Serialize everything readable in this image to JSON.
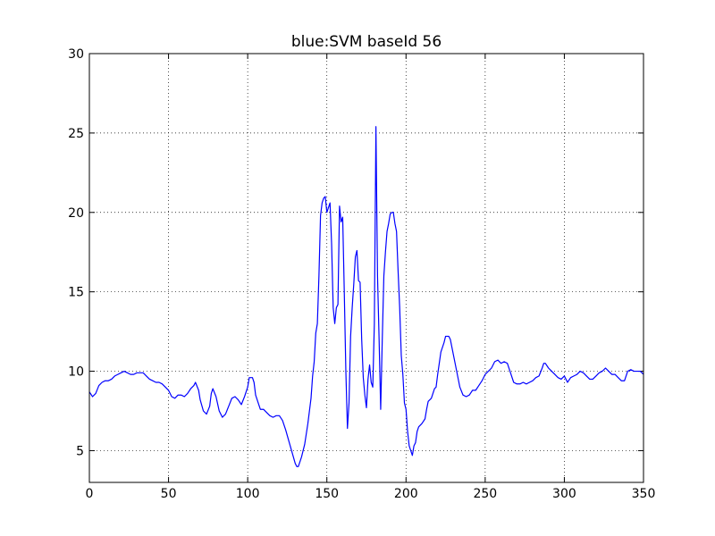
{
  "chart_data": {
    "type": "line",
    "title": "blue:SVM baseId 56",
    "color": "#0000ff",
    "grid": true,
    "xlim": [
      0,
      350
    ],
    "ylim": [
      3,
      30
    ],
    "xticks": [
      0,
      50,
      100,
      150,
      200,
      250,
      300,
      350
    ],
    "yticks": [
      5,
      10,
      15,
      20,
      25,
      30
    ],
    "x": [
      0,
      2,
      4,
      6,
      8,
      10,
      12,
      14,
      16,
      18,
      20,
      22,
      24,
      26,
      28,
      30,
      32,
      34,
      36,
      38,
      40,
      42,
      44,
      46,
      48,
      50,
      52,
      54,
      56,
      58,
      60,
      62,
      64,
      66,
      67,
      69,
      70,
      72,
      74,
      76,
      77,
      78,
      80,
      82,
      84,
      86,
      88,
      90,
      92,
      94,
      96,
      98,
      100,
      101,
      103,
      104,
      105,
      107,
      108,
      110,
      112,
      114,
      116,
      118,
      120,
      122,
      124,
      126,
      128,
      130,
      131,
      132,
      134,
      136,
      138,
      140,
      141,
      142,
      143,
      144,
      145,
      146,
      147,
      148,
      149,
      150,
      151,
      152,
      153,
      154,
      155,
      156,
      157,
      158,
      159,
      160,
      161,
      162,
      163,
      164,
      165,
      166,
      167,
      168,
      169,
      170,
      171,
      172,
      173,
      174,
      175,
      176,
      177,
      178,
      179,
      180,
      181,
      182,
      183,
      184,
      185,
      186,
      187,
      188,
      189,
      190,
      191,
      192,
      193,
      194,
      195,
      196,
      197,
      198,
      199,
      200,
      201,
      202,
      203,
      204,
      205,
      206,
      207,
      208,
      210,
      212,
      213,
      214,
      216,
      218,
      219,
      220,
      221,
      222,
      224,
      225,
      227,
      228,
      229,
      230,
      231,
      232,
      233,
      234,
      236,
      238,
      240,
      242,
      244,
      246,
      248,
      250,
      252,
      254,
      256,
      258,
      260,
      262,
      264,
      266,
      268,
      270,
      272,
      274,
      276,
      278,
      280,
      282,
      284,
      286,
      287,
      288,
      290,
      292,
      294,
      296,
      298,
      300,
      302,
      304,
      306,
      308,
      310,
      312,
      314,
      316,
      318,
      320,
      322,
      324,
      326,
      328,
      330,
      332,
      334,
      336,
      338,
      340,
      342,
      344,
      346,
      348,
      350
    ],
    "values": [
      8.7,
      8.4,
      8.6,
      9.1,
      9.3,
      9.4,
      9.4,
      9.5,
      9.7,
      9.8,
      9.9,
      10.0,
      9.9,
      9.8,
      9.8,
      9.9,
      9.9,
      9.9,
      9.7,
      9.5,
      9.4,
      9.3,
      9.3,
      9.2,
      9.0,
      8.8,
      8.4,
      8.3,
      8.5,
      8.5,
      8.4,
      8.6,
      8.9,
      9.1,
      9.3,
      8.8,
      8.2,
      7.5,
      7.3,
      7.8,
      8.6,
      8.9,
      8.4,
      7.5,
      7.1,
      7.3,
      7.8,
      8.3,
      8.4,
      8.2,
      7.9,
      8.4,
      9.0,
      9.6,
      9.6,
      9.3,
      8.5,
      7.9,
      7.6,
      7.6,
      7.4,
      7.2,
      7.1,
      7.2,
      7.2,
      6.9,
      6.3,
      5.6,
      4.9,
      4.2,
      4.0,
      4.0,
      4.6,
      5.4,
      6.7,
      8.3,
      9.7,
      10.6,
      12.4,
      13.0,
      16.0,
      19.8,
      20.6,
      20.9,
      21.0,
      20.0,
      20.3,
      20.6,
      18.0,
      14.0,
      13.0,
      14.0,
      14.2,
      20.4,
      19.4,
      19.7,
      15.0,
      10.0,
      6.4,
      8.0,
      12.2,
      14.0,
      15.5,
      17.2,
      17.6,
      15.7,
      15.6,
      12.0,
      9.6,
      8.5,
      7.7,
      9.5,
      10.4,
      9.3,
      9.0,
      13.0,
      25.4,
      16.0,
      12.0,
      7.6,
      12.0,
      16.0,
      17.5,
      18.8,
      19.3,
      19.9,
      20.0,
      20.0,
      19.3,
      18.8,
      16.3,
      14.0,
      11.0,
      9.8,
      8.0,
      7.6,
      6.2,
      5.3,
      5.0,
      4.7,
      5.3,
      5.5,
      6.2,
      6.5,
      6.7,
      7.0,
      7.6,
      8.1,
      8.3,
      8.9,
      9.0,
      9.8,
      10.5,
      11.2,
      11.8,
      12.2,
      12.2,
      12.0,
      11.5,
      11.0,
      10.5,
      10.0,
      9.5,
      9.0,
      8.5,
      8.4,
      8.5,
      8.8,
      8.8,
      9.1,
      9.4,
      9.8,
      10.0,
      10.2,
      10.6,
      10.7,
      10.5,
      10.6,
      10.5,
      9.9,
      9.3,
      9.2,
      9.2,
      9.3,
      9.2,
      9.3,
      9.4,
      9.6,
      9.7,
      10.2,
      10.5,
      10.5,
      10.2,
      10.0,
      9.8,
      9.6,
      9.5,
      9.7,
      9.3,
      9.6,
      9.7,
      9.8,
      10.0,
      9.9,
      9.7,
      9.5,
      9.5,
      9.7,
      9.9,
      10.0,
      10.2,
      10.0,
      9.8,
      9.8,
      9.6,
      9.4,
      9.4,
      10.0,
      10.1,
      10.0,
      10.0,
      10.0,
      9.8
    ]
  }
}
